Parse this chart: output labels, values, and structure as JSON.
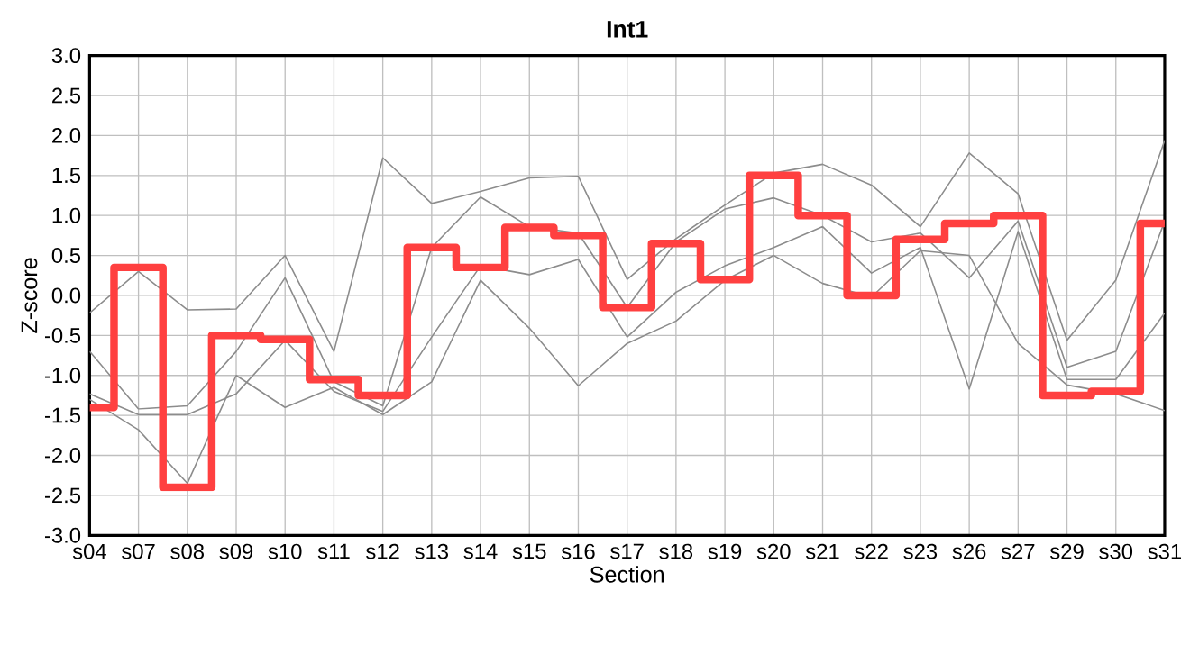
{
  "chart_data": {
    "type": "line",
    "title": "Int1",
    "xlabel": "Section",
    "ylabel": "Z-score",
    "categories": [
      "s04",
      "s07",
      "s08",
      "s09",
      "s10",
      "s11",
      "s12",
      "s13",
      "s14",
      "s15",
      "s16",
      "s17",
      "s18",
      "s19",
      "s20",
      "s21",
      "s22",
      "s23",
      "s26",
      "s27",
      "s29",
      "s30",
      "s31"
    ],
    "ylim": [
      -3,
      3
    ],
    "yticks": [
      {
        "value": -3,
        "label": "-3.0"
      },
      -2.5,
      {
        "value": -2,
        "label": "-2.0"
      },
      -1.5,
      {
        "value": -1,
        "label": "-1.0"
      },
      -0.5,
      {
        "value": 0,
        "label": "0.0"
      },
      0.5,
      {
        "value": 1,
        "label": "1.0"
      },
      1.5,
      {
        "value": 2,
        "label": "2.0"
      },
      2.5,
      {
        "value": 3,
        "label": "3.0"
      }
    ],
    "grid": true,
    "marker": "none",
    "series": [
      {
        "color": "#8c8c8c",
        "values": [
          -0.22,
          0.3,
          -0.18,
          -0.17,
          0.5,
          -0.7,
          1.72,
          1.15,
          1.3,
          1.47,
          1.49,
          0.2,
          0.71,
          1.13,
          1.53,
          1.64,
          1.38,
          0.86,
          1.78,
          1.27,
          -0.56,
          0.19,
          1.94
        ]
      },
      {
        "color": "#8c8c8c",
        "values": [
          -0.7,
          -1.42,
          -1.38,
          -0.7,
          0.22,
          -1.08,
          -1.38,
          0.6,
          1.23,
          0.86,
          0.78,
          -0.15,
          0.67,
          1.08,
          1.22,
          1.0,
          0.67,
          0.78,
          0.22,
          0.93,
          -0.9,
          -0.7,
          0.93
        ]
      },
      {
        "color": "#8c8c8c",
        "values": [
          -1.23,
          -1.49,
          -1.49,
          -1.23,
          -0.56,
          -1.2,
          -1.45,
          -0.52,
          0.37,
          0.26,
          0.45,
          -0.52,
          0.04,
          0.37,
          0.6,
          0.86,
          0.28,
          0.6,
          -1.17,
          0.8,
          -1.05,
          -1.05,
          -0.22
        ]
      },
      {
        "color": "#8c8c8c",
        "values": [
          -1.3,
          -1.68,
          -2.35,
          -1.0,
          -1.4,
          -1.15,
          -1.49,
          -1.08,
          0.19,
          -0.41,
          -1.13,
          -0.6,
          -0.32,
          0.19,
          0.5,
          0.15,
          -0.02,
          0.56,
          0.5,
          -0.6,
          -1.12,
          -1.23,
          -1.44
        ]
      },
      {
        "type": "step",
        "color": "#ff4040",
        "values": [
          -1.4,
          0.35,
          -2.4,
          -0.5,
          -0.55,
          -1.05,
          -1.25,
          0.6,
          0.35,
          0.85,
          0.75,
          -0.15,
          0.65,
          0.2,
          1.5,
          1.0,
          0.0,
          0.7,
          0.9,
          1.0,
          -1.25,
          -1.2,
          0.9
        ]
      }
    ]
  }
}
